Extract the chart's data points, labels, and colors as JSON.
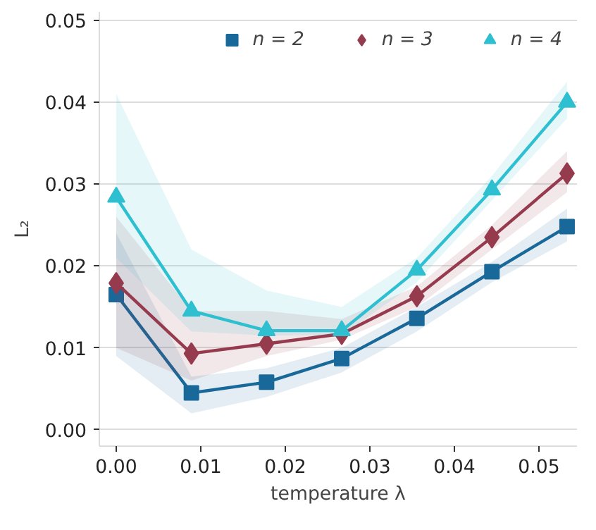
{
  "chart_data": {
    "type": "line",
    "xlabel": "temperature λ",
    "ylabel": "L₂",
    "x": [
      0,
      0.00889,
      0.01778,
      0.02667,
      0.03556,
      0.04444,
      0.05333
    ],
    "series": [
      {
        "name": "n = 2",
        "color": "#19689a",
        "marker": "square",
        "values": [
          0.0165,
          0.0045,
          0.0058,
          0.0087,
          0.0136,
          0.0193,
          0.0248
        ],
        "lower": [
          0.009,
          0.002,
          0.004,
          0.007,
          0.012,
          0.018,
          0.023
        ],
        "upper": [
          0.024,
          0.0065,
          0.0075,
          0.01,
          0.015,
          0.0205,
          0.027
        ]
      },
      {
        "name": "n = 3",
        "color": "#963b4e",
        "marker": "diamond",
        "values": [
          0.0179,
          0.0093,
          0.0105,
          0.0117,
          0.0163,
          0.0235,
          0.0313
        ],
        "lower": [
          0.01,
          0.006,
          0.009,
          0.011,
          0.015,
          0.022,
          0.029
        ],
        "upper": [
          0.026,
          0.0145,
          0.0145,
          0.0135,
          0.0175,
          0.025,
          0.034
        ]
      },
      {
        "name": "n = 4",
        "color": "#2ebfd0",
        "marker": "triangle",
        "values": [
          0.0284,
          0.0145,
          0.0121,
          0.0121,
          0.0195,
          0.0293,
          0.04
        ],
        "lower": [
          0.021,
          0.012,
          0.0115,
          0.0115,
          0.018,
          0.028,
          0.038
        ],
        "upper": [
          0.041,
          0.022,
          0.017,
          0.015,
          0.021,
          0.031,
          0.0425
        ]
      }
    ],
    "xlim": [
      -0.002,
      0.0545
    ],
    "ylim": [
      -0.002,
      0.051
    ],
    "xticks": [
      {
        "value": 0,
        "label": "0.00"
      },
      {
        "value": 0.01,
        "label": "0.01"
      },
      {
        "value": 0.02,
        "label": "0.02"
      },
      {
        "value": 0.03,
        "label": "0.03"
      },
      {
        "value": 0.04,
        "label": "0.04"
      },
      {
        "value": 0.05,
        "label": "0.05"
      }
    ],
    "yticks": [
      {
        "value": 0,
        "label": "0.00"
      },
      {
        "value": 0.01,
        "label": "0.01"
      },
      {
        "value": 0.02,
        "label": "0.02"
      },
      {
        "value": 0.03,
        "label": "0.03"
      },
      {
        "value": 0.04,
        "label": "0.04"
      },
      {
        "value": 0.05,
        "label": "0.05"
      }
    ],
    "grid": "y",
    "legend": "top right",
    "line_style": "solid"
  }
}
